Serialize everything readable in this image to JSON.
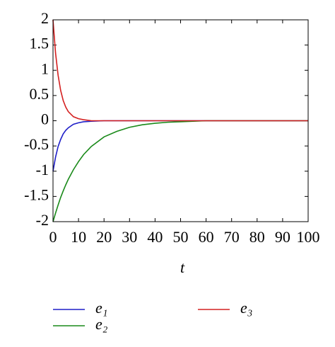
{
  "chart_data": {
    "type": "line",
    "x_label": "t",
    "x": [
      0,
      1,
      2,
      3,
      4,
      5,
      6,
      8,
      10,
      12,
      15,
      20,
      25,
      30,
      35,
      40,
      45,
      50,
      55,
      60,
      70,
      80,
      90,
      100
    ],
    "series": [
      {
        "name": "e₁",
        "color": "#1f1fc8",
        "values": [
          -1,
          -0.72,
          -0.51,
          -0.37,
          -0.26,
          -0.19,
          -0.14,
          -0.07,
          -0.04,
          -0.02,
          -0.01,
          0,
          0,
          0,
          0,
          0,
          0,
          0,
          0,
          0,
          0,
          0,
          0,
          0
        ]
      },
      {
        "name": "e₂",
        "color": "#1a8a1a",
        "values": [
          -2,
          -1.83,
          -1.67,
          -1.52,
          -1.39,
          -1.27,
          -1.16,
          -0.97,
          -0.81,
          -0.67,
          -0.51,
          -0.32,
          -0.21,
          -0.13,
          -0.08,
          -0.05,
          -0.03,
          -0.02,
          -0.01,
          0,
          0,
          0,
          0,
          0
        ]
      },
      {
        "name": "e₃",
        "color": "#d42020",
        "values": [
          2,
          1.34,
          0.9,
          0.6,
          0.4,
          0.27,
          0.18,
          0.08,
          0.04,
          0.02,
          0,
          0,
          0,
          0,
          0,
          0,
          0,
          0,
          0,
          0,
          0,
          0,
          0,
          0
        ]
      }
    ],
    "xlim": [
      0,
      100
    ],
    "xticks": [
      0,
      10,
      20,
      30,
      40,
      50,
      60,
      70,
      80,
      90,
      100
    ],
    "ylim": [
      -2,
      2
    ],
    "yticks": [
      -2,
      -1.5,
      -1,
      -0.5,
      0,
      0.5,
      1,
      1.5,
      2
    ]
  }
}
